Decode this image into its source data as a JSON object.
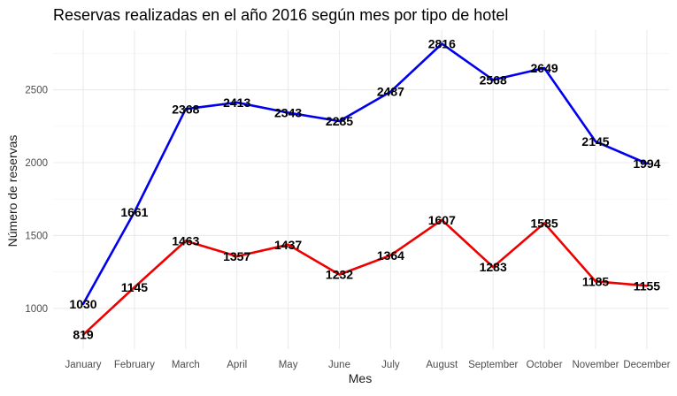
{
  "chart_data": {
    "type": "line",
    "title": "Reservas realizadas en el año 2016 según mes por tipo de hotel",
    "xlabel": "Mes",
    "ylabel": "Número de reservas",
    "categories": [
      "January",
      "February",
      "March",
      "April",
      "May",
      "June",
      "July",
      "August",
      "September",
      "October",
      "November",
      "December"
    ],
    "y_ticks": [
      1000,
      1500,
      2000,
      2500
    ],
    "y_tick_labels": [
      "1000",
      "1500",
      "2000",
      "2500"
    ],
    "ylim": [
      720,
      2910
    ],
    "grid": true,
    "legend": "none",
    "series": [
      {
        "color": "#0000ee",
        "values": [
          1030,
          1661,
          2368,
          2413,
          2343,
          2285,
          2487,
          2816,
          2568,
          2649,
          2145,
          1994
        ]
      },
      {
        "color": "#ee0000",
        "values": [
          819,
          1145,
          1463,
          1357,
          1437,
          1232,
          1364,
          1607,
          1283,
          1585,
          1185,
          1155
        ]
      }
    ]
  }
}
